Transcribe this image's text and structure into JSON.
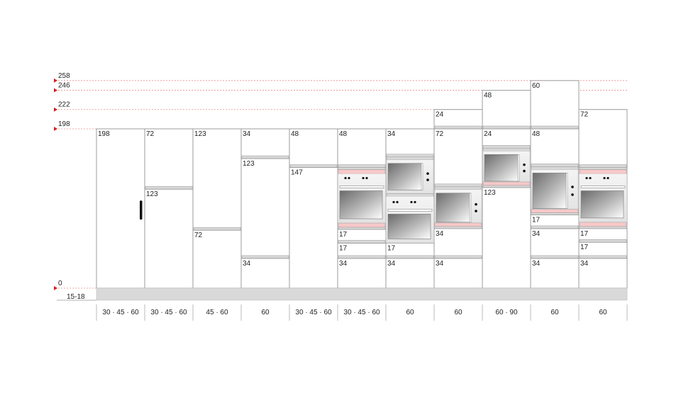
{
  "levels": [
    {
      "value": 258,
      "label": "258"
    },
    {
      "value": 246,
      "label": "246"
    },
    {
      "value": 222,
      "label": "222"
    },
    {
      "value": 198,
      "label": "198"
    },
    {
      "value": 0,
      "label": "0"
    }
  ],
  "plinth": {
    "label": "15-18"
  },
  "colors": {
    "line": "#9a9a9a",
    "dashed": "#f08a8a",
    "marker": "#d42020",
    "strip": "#d8d8d8",
    "pink": "#f7c8c8",
    "plinth": "#d9d9d9",
    "text": "#222222"
  },
  "columns": [
    {
      "id": "c1",
      "width": "30 · 45 · 60",
      "top": 198,
      "segments": [
        {
          "kind": "door",
          "from": 0,
          "to": 198,
          "label": "198",
          "handle": true
        }
      ]
    },
    {
      "id": "c2",
      "width": "30 · 45 · 60",
      "top": 198,
      "segments": [
        {
          "kind": "door",
          "from": 123,
          "to": 198,
          "label": "72"
        },
        {
          "kind": "door",
          "from": 0,
          "to": 123,
          "label": "123"
        }
      ]
    },
    {
      "id": "c3",
      "width": "45 · 60",
      "top": 198,
      "segments": [
        {
          "kind": "door",
          "from": 72,
          "to": 198,
          "label": "123"
        },
        {
          "kind": "door",
          "from": 0,
          "to": 72,
          "label": "72"
        }
      ]
    },
    {
      "id": "c4",
      "width": "60",
      "top": 198,
      "segments": [
        {
          "kind": "door",
          "from": 161,
          "to": 198,
          "label": "34"
        },
        {
          "kind": "door",
          "from": 37,
          "to": 161,
          "label": "123"
        },
        {
          "kind": "door",
          "from": 0,
          "to": 37,
          "label": "34"
        }
      ]
    },
    {
      "id": "c5",
      "width": "30 · 45 · 60",
      "top": 198,
      "segments": [
        {
          "kind": "door",
          "from": 150,
          "to": 198,
          "label": "48"
        },
        {
          "kind": "door",
          "from": 0,
          "to": 150,
          "label": "147"
        }
      ]
    },
    {
      "id": "c6",
      "width": "30 · 45 · 60",
      "top": 198,
      "segments": [
        {
          "kind": "door",
          "from": 150,
          "to": 198,
          "label": "48"
        },
        {
          "kind": "oven",
          "from": 73,
          "to": 150
        },
        {
          "kind": "door",
          "from": 56,
          "to": 73,
          "label": "17"
        },
        {
          "kind": "door",
          "from": 37,
          "to": 56,
          "label": "17"
        },
        {
          "kind": "door",
          "from": 0,
          "to": 37,
          "label": "34"
        }
      ]
    },
    {
      "id": "c7",
      "width": "60",
      "top": 198,
      "segments": [
        {
          "kind": "door",
          "from": 163,
          "to": 198,
          "label": "34"
        },
        {
          "kind": "micro",
          "from": 114,
          "to": 163
        },
        {
          "kind": "oven2",
          "from": 56,
          "to": 114
        },
        {
          "kind": "door",
          "from": 37,
          "to": 56,
          "label": "17"
        },
        {
          "kind": "door",
          "from": 0,
          "to": 37,
          "label": "34"
        }
      ]
    },
    {
      "id": "c8",
      "width": "60",
      "top": 222,
      "segments": [
        {
          "kind": "door",
          "from": 198,
          "to": 222,
          "label": "24"
        },
        {
          "kind": "door",
          "from": 126,
          "to": 198,
          "label": "72"
        },
        {
          "kind": "microp",
          "from": 74,
          "to": 126
        },
        {
          "kind": "door",
          "from": 37,
          "to": 74,
          "label": "34"
        },
        {
          "kind": "door",
          "from": 0,
          "to": 37,
          "label": "34"
        }
      ]
    },
    {
      "id": "c9",
      "width": "60 · 90",
      "top": 246,
      "segments": [
        {
          "kind": "door",
          "from": 198,
          "to": 246,
          "label": "48"
        },
        {
          "kind": "door",
          "from": 174,
          "to": 198,
          "label": "24"
        },
        {
          "kind": "microp",
          "from": 125,
          "to": 174
        },
        {
          "kind": "door",
          "from": 0,
          "to": 125,
          "label": "123"
        }
      ]
    },
    {
      "id": "c10",
      "width": "60",
      "top": 258,
      "segments": [
        {
          "kind": "door",
          "from": 198,
          "to": 258,
          "label": "60"
        },
        {
          "kind": "door",
          "from": 151,
          "to": 198,
          "label": "48"
        },
        {
          "kind": "microp",
          "from": 91,
          "to": 151
        },
        {
          "kind": "door",
          "from": 74,
          "to": 91,
          "label": "17"
        },
        {
          "kind": "door",
          "from": 37,
          "to": 74,
          "label": "34"
        },
        {
          "kind": "door",
          "from": 0,
          "to": 37,
          "label": "34"
        }
      ]
    },
    {
      "id": "c11",
      "width": "60",
      "top": 222,
      "segments": [
        {
          "kind": "door",
          "from": 150,
          "to": 222,
          "label": "72"
        },
        {
          "kind": "oven",
          "from": 74,
          "to": 150
        },
        {
          "kind": "door",
          "from": 57,
          "to": 74,
          "label": "17"
        },
        {
          "kind": "door",
          "from": 37,
          "to": 57,
          "label": "17"
        },
        {
          "kind": "door",
          "from": 0,
          "to": 37,
          "label": "34"
        }
      ]
    }
  ]
}
